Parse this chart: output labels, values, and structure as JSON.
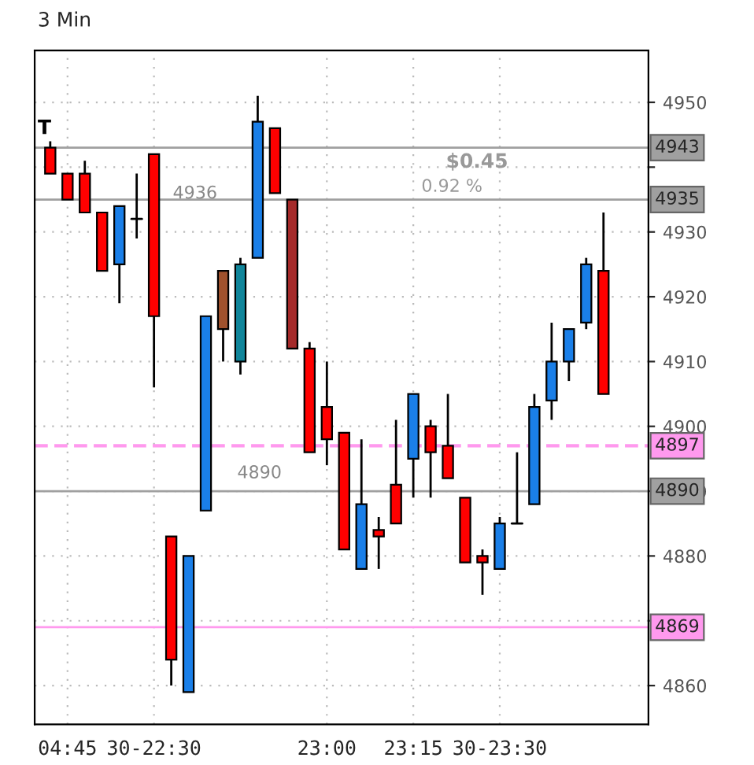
{
  "chart_data": {
    "type": "candlestick",
    "title": "3 Min",
    "categories": [
      null,
      "04:45",
      null,
      null,
      null,
      null,
      "30-22:30",
      null,
      null,
      null,
      null,
      null,
      null,
      null,
      null,
      null,
      "23:00",
      null,
      null,
      null,
      null,
      "23:15",
      null,
      null,
      null,
      null,
      "30-23:30",
      null,
      null,
      null,
      null,
      null,
      null
    ],
    "ohlc": [
      [
        4943,
        4944,
        4939,
        4939
      ],
      [
        4939,
        4939,
        4935,
        4935
      ],
      [
        4939,
        4941,
        4933,
        4933
      ],
      [
        4933,
        4933,
        4924,
        4924
      ],
      [
        4925,
        4934,
        4919,
        4934
      ],
      [
        4932,
        4939,
        4929,
        4932
      ],
      [
        4942,
        4942,
        4906,
        4917
      ],
      [
        4883,
        4883,
        4860,
        4864
      ],
      [
        4859,
        4880,
        4859,
        4880
      ],
      [
        4887,
        4917,
        4887,
        4917
      ],
      [
        4924,
        4924,
        4910,
        4915
      ],
      [
        4910,
        4926,
        4908,
        4925
      ],
      [
        4926,
        4951,
        4926,
        4947
      ],
      [
        4946,
        4946,
        4936,
        4936
      ],
      [
        4935,
        4935,
        4912,
        4912
      ],
      [
        4912,
        4913,
        4896,
        4896
      ],
      [
        4903,
        4910,
        4894,
        4898
      ],
      [
        4899,
        4899,
        4881,
        4881
      ],
      [
        4878,
        4898,
        4878,
        4888
      ],
      [
        4884,
        4886,
        4878,
        4883
      ],
      [
        4891,
        4901,
        4885,
        4885
      ],
      [
        4895,
        4905,
        4889,
        4905
      ],
      [
        4900,
        4901,
        4889,
        4896
      ],
      [
        4897,
        4905,
        4892,
        4892
      ],
      [
        4889,
        4889,
        4879,
        4879
      ],
      [
        4880,
        4881,
        4874,
        4879
      ],
      [
        4878,
        4886,
        4878,
        4885
      ],
      [
        4885,
        4896,
        4885,
        4885
      ],
      [
        4888,
        4905,
        4888,
        4903
      ],
      [
        4904,
        4916,
        4901,
        4910
      ],
      [
        4910,
        4915,
        4907,
        4915
      ],
      [
        4916,
        4926,
        4915,
        4925
      ],
      [
        4924,
        4933,
        4905,
        4905
      ]
    ],
    "colors": [
      "#ff0000",
      "#ff0000",
      "#ff0000",
      "#ff0000",
      "#1a7fe8",
      "#000000",
      "#ff0000",
      "#ff0000",
      "#1a7fe8",
      "#1a7fe8",
      "#a0522d",
      "#10859a",
      "#1a7fe8",
      "#ff0000",
      "#a52a2a",
      "#ff0000",
      "#ff0000",
      "#ff0000",
      "#1a7fe8",
      "#ff0000",
      "#ff0000",
      "#1a7fe8",
      "#ff0000",
      "#ff0000",
      "#ff0000",
      "#ff0000",
      "#1a7fe8",
      "#000000",
      "#1a7fe8",
      "#1a7fe8",
      "#1a7fe8",
      "#1a7fe8",
      "#ff0000"
    ],
    "ylim": [
      4854,
      4958
    ],
    "yticks": [
      4860,
      {
        "value": 4870,
        "label": null
      },
      4880,
      4890,
      4900,
      4910,
      4920,
      4930,
      {
        "value": 4940,
        "label": null
      },
      4950
    ],
    "grid": true,
    "ref_lines": [
      {
        "axis": "y",
        "value": 4943,
        "label": "4943",
        "color": "#a0a0a0",
        "line_style": "solid"
      },
      {
        "axis": "y",
        "value": 4935,
        "label": "4935",
        "color": "#a0a0a0",
        "line_style": "solid"
      },
      {
        "axis": "y",
        "value": 4897,
        "label": "4897",
        "color": "#ff99ee",
        "line_style": "dashed"
      },
      {
        "axis": "y",
        "value": 4890,
        "label": "4890",
        "color": "#a0a0a0",
        "line_style": "solid"
      },
      {
        "axis": "y",
        "value": 4869,
        "label": "4869",
        "color": "#ff99ee",
        "line_style": "solid"
      }
    ],
    "annotations": [
      "T",
      "$0.45",
      "0.92 %",
      "4936",
      "4890"
    ]
  }
}
